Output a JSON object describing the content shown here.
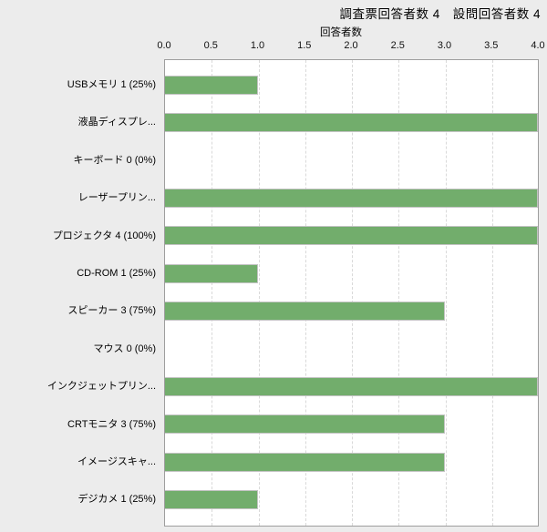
{
  "header": {
    "title": "調査票回答者数 4　設問回答者数 4"
  },
  "colors": {
    "background": "#ececec",
    "plot_background": "#ffffff",
    "plot_border": "#9e9e9e",
    "gridline": "#d9d9d9",
    "bar": "#72ad6c",
    "bar_border": "#c3c3c3",
    "text": "#000000"
  },
  "chart_data": {
    "type": "bar",
    "orientation": "horizontal",
    "title": "調査票回答者数 4　設問回答者数 4",
    "xlabel": "回答者数",
    "ylabel": "",
    "xlim": [
      0.0,
      4.0
    ],
    "xtick_labels": [
      "0.0",
      "0.5",
      "1.0",
      "1.5",
      "2.0",
      "2.5",
      "3.0",
      "3.5",
      "4.0"
    ],
    "grid": "vertical-dashed",
    "legend_position": "none",
    "categories": [
      "USBメモリ 1 (25%)",
      "液晶ディスプレ...",
      "キーボード 0 (0%)",
      "レーザープリン...",
      "プロジェクタ 4 (100%)",
      "CD-ROM 1 (25%)",
      "スピーカー 3 (75%)",
      "マウス 0 (0%)",
      "インクジェットプリン...",
      "CRTモニタ 3 (75%)",
      "イメージスキャ...",
      "デジカメ 1 (25%)"
    ],
    "values": [
      1,
      4,
      0,
      4,
      4,
      1,
      3,
      0,
      4,
      3,
      3,
      1
    ]
  }
}
